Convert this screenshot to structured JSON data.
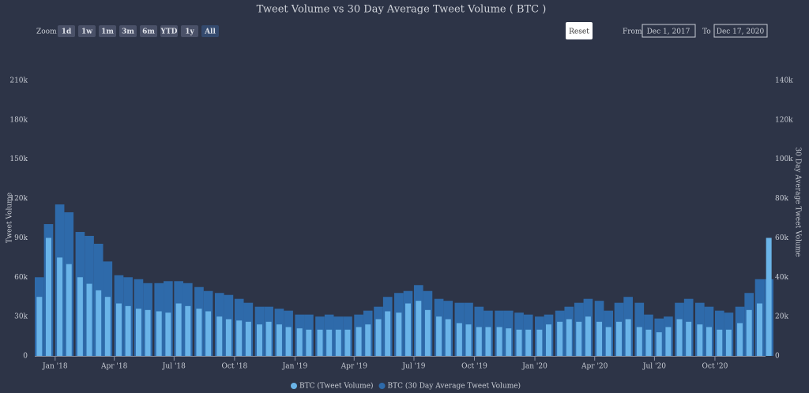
{
  "chart_data": {
    "type": "bar",
    "title": "Tweet Volume vs 30 Day Average Tweet Volume (  BTC )",
    "ylabel": "Tweet Volume",
    "y2label": "30 Day Average Tweet Volume",
    "legend": "bottom",
    "x": [
      "2017-12-01",
      "2017-12-15",
      "2018-01-01",
      "2018-01-15",
      "2018-02-01",
      "2018-02-15",
      "2018-03-01",
      "2018-03-15",
      "2018-04-01",
      "2018-04-15",
      "2018-05-01",
      "2018-05-15",
      "2018-06-01",
      "2018-06-15",
      "2018-07-01",
      "2018-07-15",
      "2018-08-01",
      "2018-08-15",
      "2018-09-01",
      "2018-09-15",
      "2018-10-01",
      "2018-10-15",
      "2018-11-01",
      "2018-11-15",
      "2018-12-01",
      "2018-12-15",
      "2019-01-01",
      "2019-01-15",
      "2019-02-01",
      "2019-02-15",
      "2019-03-01",
      "2019-03-15",
      "2019-04-01",
      "2019-04-15",
      "2019-05-01",
      "2019-05-15",
      "2019-06-01",
      "2019-06-15",
      "2019-07-01",
      "2019-07-15",
      "2019-08-01",
      "2019-08-15",
      "2019-09-01",
      "2019-09-15",
      "2019-10-01",
      "2019-10-15",
      "2019-11-01",
      "2019-11-15",
      "2019-12-01",
      "2019-12-15",
      "2020-01-01",
      "2020-01-15",
      "2020-02-01",
      "2020-02-15",
      "2020-03-01",
      "2020-03-15",
      "2020-04-01",
      "2020-04-15",
      "2020-05-01",
      "2020-05-15",
      "2020-06-01",
      "2020-06-15",
      "2020-07-01",
      "2020-07-15",
      "2020-08-01",
      "2020-08-15",
      "2020-09-01",
      "2020-09-15",
      "2020-10-01",
      "2020-10-15",
      "2020-11-01",
      "2020-11-15",
      "2020-12-01",
      "2020-12-15"
    ],
    "xlim": [
      "2017-12-01",
      "2020-12-17"
    ],
    "xticks": [
      {
        "value": "2018-01-01",
        "label": "Jan '18"
      },
      {
        "value": "2018-04-01",
        "label": "Apr '18"
      },
      {
        "value": "2018-07-01",
        "label": "Jul '18"
      },
      {
        "value": "2018-10-01",
        "label": "Oct '18"
      },
      {
        "value": "2019-01-01",
        "label": "Jan '19"
      },
      {
        "value": "2019-04-01",
        "label": "Apr '19"
      },
      {
        "value": "2019-07-01",
        "label": "Jul '19"
      },
      {
        "value": "2019-10-01",
        "label": "Oct '19"
      },
      {
        "value": "2020-01-01",
        "label": "Jan '20"
      },
      {
        "value": "2020-04-01",
        "label": "Apr '20"
      },
      {
        "value": "2020-07-01",
        "label": "Jul '20"
      },
      {
        "value": "2020-10-01",
        "label": "Oct '20"
      }
    ],
    "ylim": [
      0,
      210000
    ],
    "yticks": [
      0,
      {
        "value": 30000,
        "label": "30k"
      },
      {
        "value": 60000,
        "label": "60k"
      },
      {
        "value": 90000,
        "label": "90k"
      },
      {
        "value": 120000,
        "label": "120k"
      },
      {
        "value": 150000,
        "label": "150k"
      },
      {
        "value": 180000,
        "label": "180k"
      },
      {
        "value": 210000,
        "label": "210k"
      }
    ],
    "y2lim": [
      0,
      140000
    ],
    "y2ticks": [
      0,
      {
        "value": 20000,
        "label": "20k"
      },
      {
        "value": 40000,
        "label": "40k"
      },
      {
        "value": 60000,
        "label": "60k"
      },
      {
        "value": 80000,
        "label": "80k"
      },
      {
        "value": 100000,
        "label": "100k"
      },
      {
        "value": 120000,
        "label": "120k"
      },
      {
        "value": 140000,
        "label": "140k"
      }
    ],
    "series": [
      {
        "name": "BTC (30 Day Average Tweet Volume)",
        "color": "#2e6aaa",
        "axis": "y2",
        "values": [
          40000,
          67000,
          77000,
          73000,
          63000,
          61000,
          57000,
          48000,
          41000,
          40000,
          39000,
          37000,
          37000,
          38000,
          38000,
          37000,
          35000,
          33000,
          32000,
          31000,
          29000,
          27000,
          25000,
          25000,
          24000,
          23000,
          21000,
          21000,
          20000,
          21000,
          20000,
          20000,
          21000,
          23000,
          25000,
          30000,
          32000,
          33000,
          36000,
          33000,
          29000,
          28000,
          27000,
          27000,
          25000,
          23000,
          23000,
          23000,
          22000,
          21000,
          20000,
          21000,
          23000,
          25000,
          27000,
          29000,
          28000,
          23000,
          27000,
          30000,
          27000,
          21000,
          19000,
          20000,
          27000,
          29000,
          27000,
          25000,
          23000,
          22000,
          25000,
          32000,
          39000,
          39000
        ]
      },
      {
        "name": "BTC (Tweet Volume)",
        "color": "#6ab4e8",
        "values": [
          45000,
          90000,
          75000,
          70000,
          60000,
          55000,
          50000,
          45000,
          40000,
          38000,
          36000,
          35000,
          34000,
          33000,
          40000,
          38000,
          36000,
          34000,
          30000,
          28000,
          27000,
          26000,
          24000,
          26000,
          24000,
          22000,
          21000,
          20000,
          20000,
          20000,
          20000,
          20000,
          22000,
          24000,
          28000,
          34000,
          33000,
          40000,
          42000,
          35000,
          30000,
          28000,
          25000,
          24000,
          22000,
          22000,
          22000,
          21000,
          20000,
          20000,
          20000,
          24000,
          26000,
          28000,
          26000,
          30000,
          26000,
          22000,
          26000,
          28000,
          22000,
          20000,
          18000,
          22000,
          28000,
          26000,
          24000,
          22000,
          20000,
          20000,
          25000,
          35000,
          40000,
          90000
        ]
      }
    ]
  },
  "range_selector": {
    "label": "Zoom",
    "buttons": [
      "1d",
      "1w",
      "1m",
      "3m",
      "6m",
      "YTD",
      "1y",
      "All"
    ],
    "reset": "Reset",
    "from_label": "From",
    "from": "Dec 1, 2017",
    "to_label": "To",
    "to": "Dec 17, 2020"
  }
}
